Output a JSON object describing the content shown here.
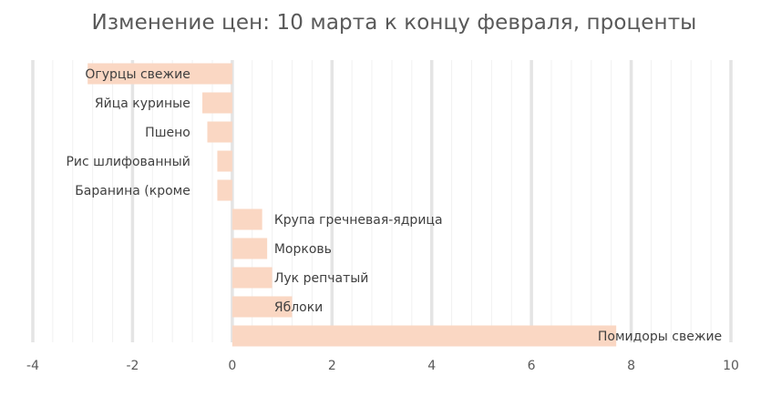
{
  "chart_data": {
    "type": "bar",
    "orientation": "horizontal",
    "title": "Изменение цен: 10 марта к концу февраля, проценты",
    "xlabel": "",
    "ylabel": "",
    "xlim": [
      -4,
      10
    ],
    "xticks": [
      -4,
      -2,
      0,
      2,
      4,
      6,
      8,
      10
    ],
    "grid": true,
    "legend": "none",
    "bar_color": "#FAD7C3",
    "categories": [
      "Огурцы свежие",
      "Яйца куриные",
      "Пшено",
      "Рис шлифованный",
      "Баранина (кроме",
      "Крупа гречневая-ядрица",
      "Морковь",
      "Лук репчатый",
      "Яблоки",
      "Помидоры свежие"
    ],
    "values": [
      -2.9,
      -0.6,
      -0.5,
      -0.3,
      -0.3,
      0.6,
      0.7,
      0.8,
      1.2,
      7.7
    ]
  }
}
